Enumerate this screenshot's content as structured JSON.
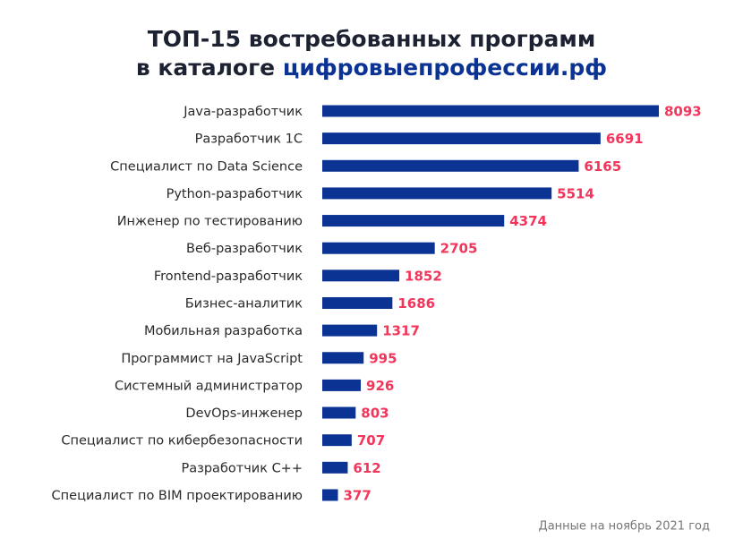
{
  "chart_data": {
    "type": "barh",
    "title": {
      "line1": "ТОП-15 востребованных программ",
      "line2_prefix": "в каталоге",
      "line2_highlight": "цифровыепрофессии.рф"
    },
    "footnote": "Данные на ноябрь 2021 год",
    "categories": [
      "Java-разработчик",
      "Разработчик 1С",
      "Специалист по Data Science",
      "Python-разработчик",
      "Инженер по тестированию",
      "Веб-разработчик",
      "Frontend-разработчик",
      "Бизнес-аналитик",
      "Мобильная разработка",
      "Программист на JavaScript",
      "Системный администратор",
      "DevOps-инженер",
      "Специалист по кибербезопасности",
      "Разработчик С++",
      "Специалист по BIM проектированию"
    ],
    "values": [
      8093,
      6691,
      6165,
      5514,
      4374,
      2705,
      1852,
      1686,
      1317,
      995,
      926,
      803,
      707,
      612,
      377
    ],
    "color": "#0b3393",
    "label_color": "#f2355b",
    "highlight_color": "#0b3393"
  }
}
